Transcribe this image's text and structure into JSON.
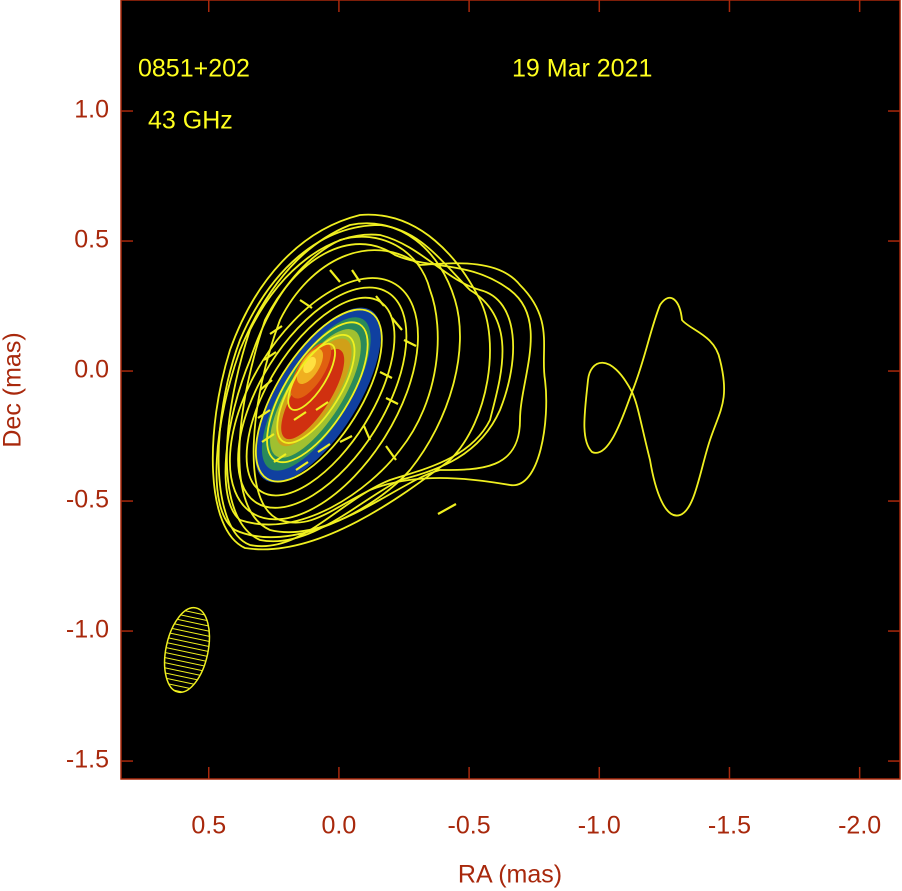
{
  "chart_data": {
    "type": "image",
    "xlabel": "RA (mas)",
    "ylabel": "Dec (mas)",
    "xlim": [
      0.837,
      -2.155
    ],
    "ylim": [
      -1.569,
      1.427
    ],
    "xticks": [
      0.5,
      {
        "value": 0,
        "label": "0.0"
      },
      -0.5,
      {
        "value": -1,
        "label": "-1.0"
      },
      -1.5,
      {
        "value": -2,
        "label": "-2.0"
      }
    ],
    "yticks": [
      {
        "value": 1,
        "label": "1.0"
      },
      0.5,
      {
        "value": 0,
        "label": "0.0"
      },
      -0.5,
      {
        "value": -1,
        "label": "-1.0"
      },
      -1.5
    ],
    "annotations": [
      "0851+202",
      "19 Mar 2021",
      "43 GHz"
    ]
  }
}
